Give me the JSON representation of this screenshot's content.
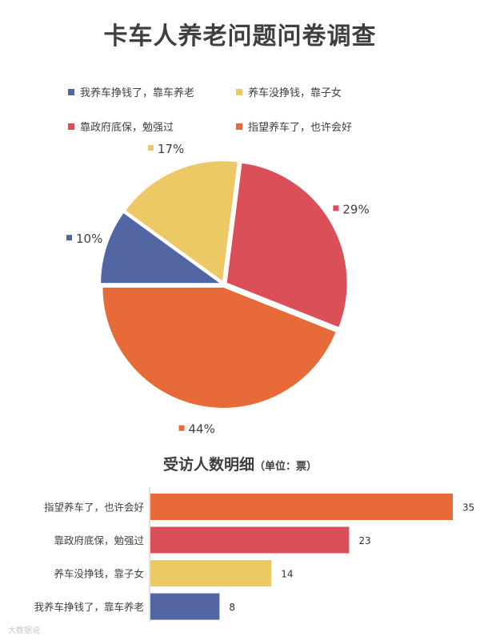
{
  "title": "卡车人养老问题问卷调查",
  "subtitle": {
    "main": "受访人数明细",
    "unit": "（单位：票）"
  },
  "watermark": "大数据说",
  "colors": {
    "blue": "#5166a3",
    "yellow": "#ecc965",
    "red": "#db4f58",
    "orange": "#e76a39"
  },
  "chart_data": [
    {
      "type": "pie",
      "legend_position": "top",
      "slices": [
        {
          "label": "我养车挣钱了，靠车养老",
          "value": 10,
          "display": "10%",
          "color": "#5166a3"
        },
        {
          "label": "养车没挣钱，靠子女",
          "value": 17,
          "display": "17%",
          "color": "#ecc965"
        },
        {
          "label": "靠政府底保，勉强过",
          "value": 29,
          "display": "29%",
          "color": "#db4f58"
        },
        {
          "label": "指望养车了，也许会好",
          "value": 44,
          "display": "44%",
          "color": "#e76a39"
        }
      ]
    },
    {
      "type": "bar",
      "orientation": "horizontal",
      "unit": "票",
      "categories": [
        "指望养车了，也许会好",
        "靠政府底保，勉强过",
        "养车没挣钱，靠子女",
        "我养车挣钱了，靠车养老"
      ],
      "values": [
        35,
        23,
        14,
        8
      ],
      "colors": [
        "#e76a39",
        "#db4f58",
        "#ecc965",
        "#5166a3"
      ],
      "xlim": [
        0,
        35
      ]
    }
  ]
}
